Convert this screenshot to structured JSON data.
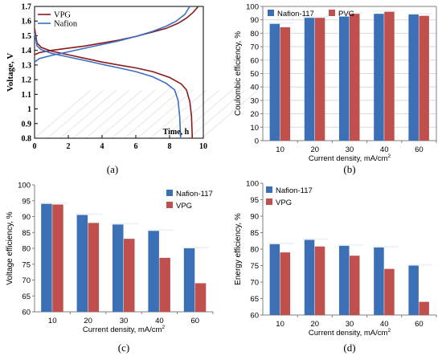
{
  "chart_data": [
    {
      "id": "a",
      "type": "line",
      "panel_label": "(a)",
      "xlabel": "Time, h",
      "ylabel": "Voltage, V",
      "xlim": [
        0,
        10
      ],
      "ylim": [
        0.8,
        1.7
      ],
      "xticks": [
        "0",
        "2",
        "4",
        "6",
        "8",
        "10"
      ],
      "yticks": [
        "0.8",
        "0.9",
        "1",
        "1.1",
        "1.2",
        "1.3",
        "1.4",
        "1.5",
        "1.6",
        "1.7"
      ],
      "grid": false,
      "legend": "top-left",
      "series": [
        {
          "name": "VPG",
          "color": "#8b1a1a",
          "charge": [
            [
              0,
              1.37
            ],
            [
              0.3,
              1.385
            ],
            [
              1,
              1.4
            ],
            [
              2,
              1.415
            ],
            [
              3,
              1.43
            ],
            [
              4,
              1.45
            ],
            [
              5,
              1.47
            ],
            [
              6,
              1.495
            ],
            [
              7,
              1.525
            ],
            [
              7.8,
              1.55
            ],
            [
              8.5,
              1.585
            ],
            [
              9.0,
              1.62
            ],
            [
              9.4,
              1.66
            ],
            [
              9.7,
              1.7
            ]
          ],
          "discharge": [
            [
              0,
              1.55
            ],
            [
              0.15,
              1.45
            ],
            [
              0.4,
              1.42
            ],
            [
              1,
              1.395
            ],
            [
              2,
              1.37
            ],
            [
              3,
              1.345
            ],
            [
              4,
              1.32
            ],
            [
              5,
              1.3
            ],
            [
              6,
              1.28
            ],
            [
              7,
              1.255
            ],
            [
              8,
              1.215
            ],
            [
              8.7,
              1.17
            ],
            [
              9.0,
              1.13
            ],
            [
              9.2,
              1.05
            ],
            [
              9.3,
              0.95
            ],
            [
              9.35,
              0.8
            ]
          ]
        },
        {
          "name": "Nafion",
          "color": "#3a6fc4",
          "charge": [
            [
              0,
              1.32
            ],
            [
              0.3,
              1.345
            ],
            [
              1,
              1.365
            ],
            [
              2,
              1.39
            ],
            [
              3,
              1.415
            ],
            [
              4,
              1.44
            ],
            [
              5,
              1.465
            ],
            [
              6,
              1.495
            ],
            [
              7,
              1.53
            ],
            [
              7.8,
              1.565
            ],
            [
              8.4,
              1.6
            ],
            [
              8.9,
              1.645
            ],
            [
              9.2,
              1.7
            ]
          ],
          "discharge": [
            [
              0,
              1.52
            ],
            [
              0.15,
              1.43
            ],
            [
              0.4,
              1.405
            ],
            [
              1,
              1.38
            ],
            [
              2,
              1.355
            ],
            [
              3,
              1.33
            ],
            [
              4,
              1.305
            ],
            [
              5,
              1.28
            ],
            [
              6,
              1.255
            ],
            [
              7,
              1.22
            ],
            [
              7.8,
              1.175
            ],
            [
              8.3,
              1.13
            ],
            [
              8.5,
              1.06
            ],
            [
              8.6,
              0.95
            ],
            [
              8.65,
              0.8
            ]
          ]
        }
      ]
    },
    {
      "id": "b",
      "type": "bar",
      "panel_label": "(b)",
      "categories": [
        "10",
        "20",
        "30",
        "40",
        "60"
      ],
      "xlabel": "Current density, mA/cm",
      "xlabel_sup": "2",
      "ylabel": "Coulombic efficiency, %",
      "ylim": [
        0,
        100
      ],
      "yticks": [
        "0",
        "10",
        "20",
        "30",
        "40",
        "50",
        "60",
        "70",
        "80",
        "90",
        "100"
      ],
      "grid": true,
      "legend": "top-left-horizontal",
      "series": [
        {
          "name": "Nafion-117",
          "color": "#3b6fb6",
          "values": [
            87,
            91.5,
            92.5,
            94.5,
            94
          ]
        },
        {
          "name": "PVG",
          "color": "#c0504d",
          "values": [
            84.5,
            91.5,
            94.5,
            96,
            93
          ]
        }
      ]
    },
    {
      "id": "c",
      "type": "bar",
      "panel_label": "(c)",
      "categories": [
        "10",
        "20",
        "30",
        "40",
        "60"
      ],
      "xlabel": "Current density, mA/cm",
      "xlabel_sup": "2",
      "ylabel": "Voltage efficiency, %",
      "ylim": [
        60,
        100
      ],
      "yticks": [
        "60",
        "65",
        "70",
        "75",
        "80",
        "85",
        "90",
        "95",
        "100"
      ],
      "grid": false,
      "legend": "top-right",
      "series": [
        {
          "name": "Nafion-117",
          "color": "#3b6fb6",
          "values": [
            94,
            90.5,
            87.5,
            85.5,
            80
          ]
        },
        {
          "name": "VPG",
          "color": "#c0504d",
          "values": [
            93.8,
            88,
            83,
            77,
            69
          ]
        }
      ]
    },
    {
      "id": "d",
      "type": "bar",
      "panel_label": "(d)",
      "categories": [
        "10",
        "20",
        "30",
        "40",
        "60"
      ],
      "xlabel": "Current density, mA/cm",
      "xlabel_sup": "2",
      "ylabel": "Energy efficiency, %",
      "ylim": [
        60,
        100
      ],
      "yticks": [
        "60",
        "65",
        "70",
        "75",
        "80",
        "85",
        "90",
        "95",
        "100"
      ],
      "grid": false,
      "legend": "top-left",
      "series": [
        {
          "name": "Nafion-117",
          "color": "#3b6fb6",
          "values": [
            81.5,
            82.8,
            81,
            80.5,
            75
          ]
        },
        {
          "name": "VPG",
          "color": "#c0504d",
          "values": [
            79,
            80.8,
            78,
            74,
            64
          ]
        }
      ]
    }
  ]
}
